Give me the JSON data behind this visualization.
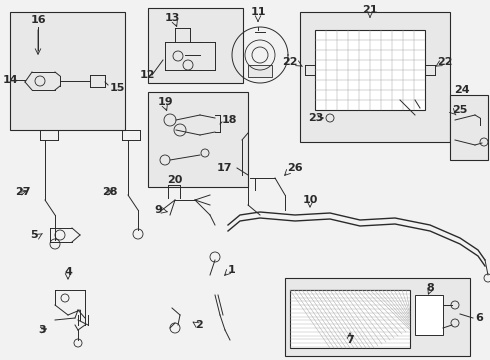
{
  "bg_color": "#f2f2f2",
  "line_color": "#2a2a2a",
  "box_bg": "#e8e8e8",
  "fig_w": 4.9,
  "fig_h": 3.6,
  "dpi": 100
}
